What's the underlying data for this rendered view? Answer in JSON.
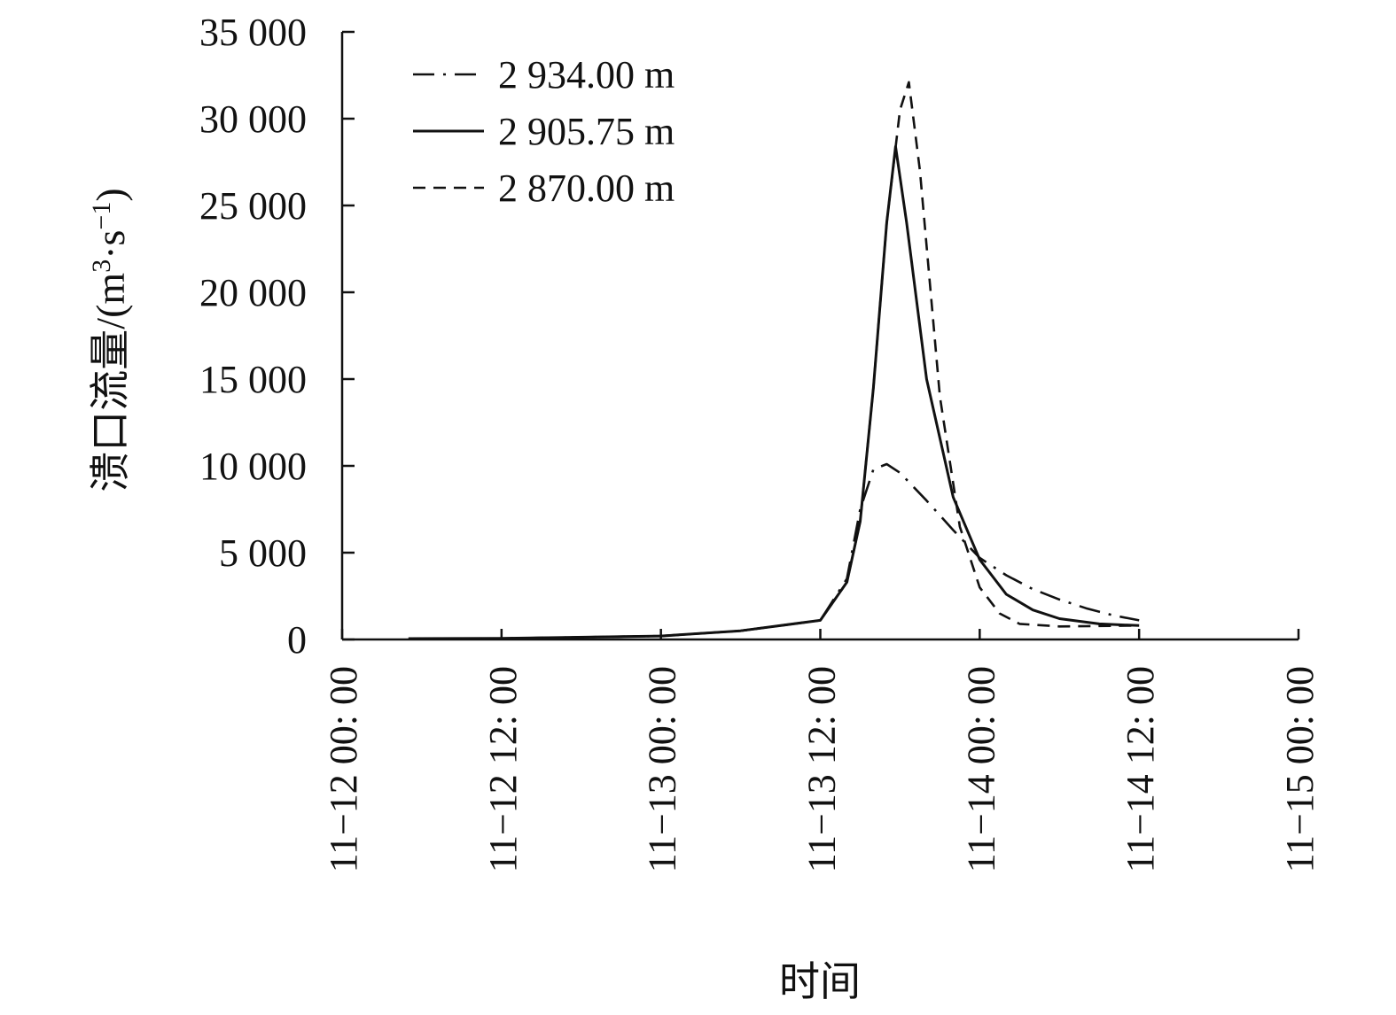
{
  "chart_data": {
    "type": "line",
    "xlabel": "时间",
    "ylabel": "溃口流量/(m³·s⁻¹)",
    "ylabel_parts": {
      "prefix": "溃口流量/(m",
      "sup1": "3",
      "mid": "·s",
      "sup2": "−1",
      "suffix": ")"
    },
    "ylim": [
      0,
      35000
    ],
    "y_ticks": [
      0,
      5000,
      10000,
      15000,
      20000,
      25000,
      30000,
      35000
    ],
    "y_tick_labels": [
      "0",
      "5 000",
      "10 000",
      "15 000",
      "20 000",
      "25 000",
      "30 000",
      "35 000"
    ],
    "xlim": [
      "2018-11-12T00:00",
      "2018-11-15T00:00"
    ],
    "x_ticks": [
      "2018-11-12T00:00",
      "2018-11-12T12:00",
      "2018-11-13T00:00",
      "2018-11-13T12:00",
      "2018-11-14T00:00",
      "2018-11-14T12:00",
      "2018-11-15T00:00"
    ],
    "x_tick_labels": [
      "11−12 00: 00",
      "11−12 12: 00",
      "11−13 00: 00",
      "11−13 12: 00",
      "11−14 00: 00",
      "11−14 12: 00",
      "11−15 00: 00"
    ],
    "legend_position": "top-left",
    "grid": false,
    "series": [
      {
        "name": "2 934.00 m",
        "style": "dashdot",
        "points": [
          [
            "2018-11-12T05:00",
            50
          ],
          [
            "2018-11-12T12:00",
            60
          ],
          [
            "2018-11-13T00:00",
            200
          ],
          [
            "2018-11-13T06:00",
            500
          ],
          [
            "2018-11-13T12:00",
            1100
          ],
          [
            "2018-11-13T14:00",
            3500
          ],
          [
            "2018-11-13T15:00",
            7500
          ],
          [
            "2018-11-13T16:00",
            9800
          ],
          [
            "2018-11-13T17:00",
            10100
          ],
          [
            "2018-11-13T18:00",
            9600
          ],
          [
            "2018-11-13T20:00",
            8000
          ],
          [
            "2018-11-13T22:00",
            6300
          ],
          [
            "2018-11-14T00:00",
            4700
          ],
          [
            "2018-11-14T02:00",
            3700
          ],
          [
            "2018-11-14T04:00",
            2900
          ],
          [
            "2018-11-14T06:00",
            2300
          ],
          [
            "2018-11-14T08:00",
            1800
          ],
          [
            "2018-11-14T10:00",
            1400
          ],
          [
            "2018-11-14T12:00",
            1100
          ]
        ]
      },
      {
        "name": "2 905.75 m",
        "style": "solid",
        "points": [
          [
            "2018-11-12T05:00",
            50
          ],
          [
            "2018-11-12T12:00",
            60
          ],
          [
            "2018-11-13T00:00",
            200
          ],
          [
            "2018-11-13T06:00",
            500
          ],
          [
            "2018-11-13T12:00",
            1100
          ],
          [
            "2018-11-13T14:00",
            3300
          ],
          [
            "2018-11-13T15:00",
            6800
          ],
          [
            "2018-11-13T16:00",
            14500
          ],
          [
            "2018-11-13T17:00",
            24000
          ],
          [
            "2018-11-13T17:40",
            28400
          ],
          [
            "2018-11-13T18:30",
            24000
          ],
          [
            "2018-11-13T20:00",
            15000
          ],
          [
            "2018-11-13T22:00",
            8200
          ],
          [
            "2018-11-14T00:00",
            4600
          ],
          [
            "2018-11-14T02:00",
            2600
          ],
          [
            "2018-11-14T04:00",
            1700
          ],
          [
            "2018-11-14T06:00",
            1200
          ],
          [
            "2018-11-14T09:00",
            900
          ],
          [
            "2018-11-14T12:00",
            800
          ]
        ]
      },
      {
        "name": "2 870.00 m",
        "style": "dashed",
        "points": [
          [
            "2018-11-12T05:00",
            50
          ],
          [
            "2018-11-12T12:00",
            60
          ],
          [
            "2018-11-13T00:00",
            200
          ],
          [
            "2018-11-13T06:00",
            500
          ],
          [
            "2018-11-13T12:00",
            1100
          ],
          [
            "2018-11-13T14:00",
            3300
          ],
          [
            "2018-11-13T15:00",
            6800
          ],
          [
            "2018-11-13T16:00",
            14500
          ],
          [
            "2018-11-13T17:00",
            24000
          ],
          [
            "2018-11-13T18:00",
            30500
          ],
          [
            "2018-11-13T18:40",
            32100
          ],
          [
            "2018-11-13T19:30",
            27000
          ],
          [
            "2018-11-13T21:00",
            14000
          ],
          [
            "2018-11-13T22:30",
            6500
          ],
          [
            "2018-11-14T00:00",
            3000
          ],
          [
            "2018-11-14T01:30",
            1500
          ],
          [
            "2018-11-14T03:00",
            900
          ],
          [
            "2018-11-14T06:00",
            750
          ],
          [
            "2018-11-14T12:00",
            800
          ]
        ]
      }
    ]
  }
}
